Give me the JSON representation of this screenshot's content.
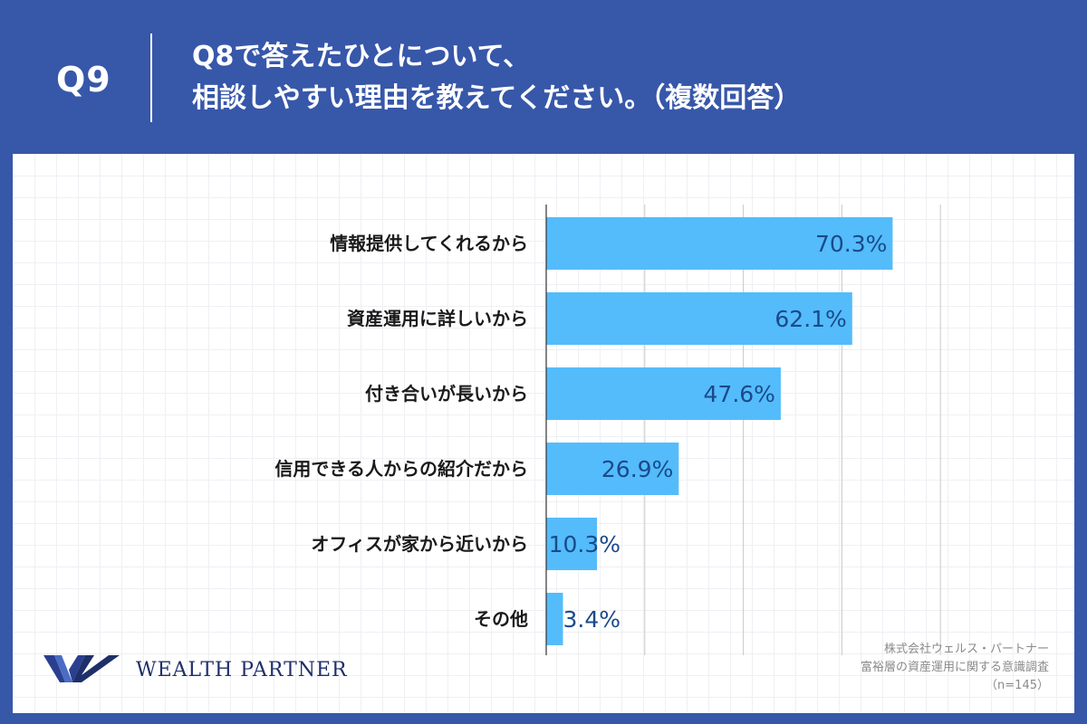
{
  "header": {
    "qnum": "Q9",
    "title_line1": "Q8で答えたひとについて、",
    "title_line2": "相談しやすい理由を教えてください。（複数回答）"
  },
  "colors": {
    "background": "#3757a9",
    "bar": "#54bcfb",
    "value_text": "#1a4a8a"
  },
  "chart_data": {
    "type": "bar",
    "orientation": "horizontal",
    "categories": [
      "情報提供してくれるから",
      "資産運用に詳しいから",
      "付き合いが長いから",
      "信用できる人からの紹介だから",
      "オフィスが家から近いから",
      "その他"
    ],
    "values": [
      70.3,
      62.1,
      47.6,
      26.9,
      10.3,
      3.4
    ],
    "value_labels": [
      "70.3%",
      "62.1%",
      "47.6%",
      "26.9%",
      "10.3%",
      "3.4%"
    ],
    "xlim": [
      0,
      100
    ],
    "grid": true
  },
  "footer": {
    "logo_text": "WEALTH PARTNER",
    "source_line1": "株式会社ウェルス・パートナー",
    "source_line2": "富裕層の資産運用に関する意識調査",
    "source_line3": "（n=145）"
  }
}
